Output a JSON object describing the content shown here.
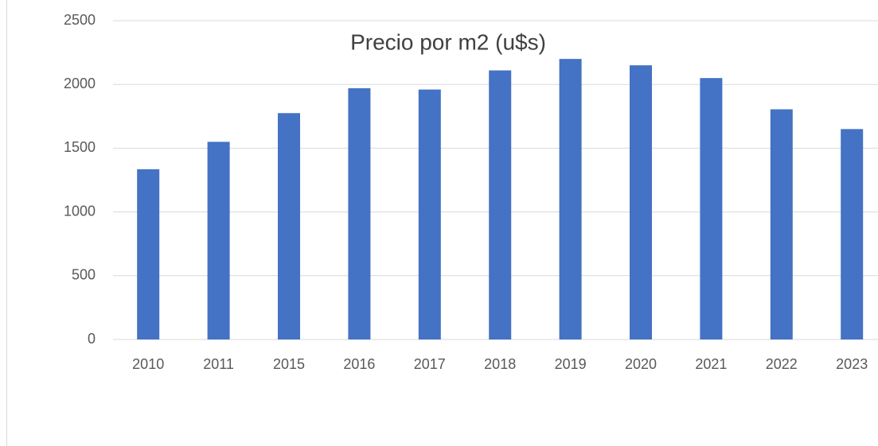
{
  "chart_data": {
    "type": "bar",
    "title": "Precio por m2 (u$s)",
    "categories": [
      "2010",
      "2011",
      "2015",
      "2016",
      "2017",
      "2018",
      "2019",
      "2020",
      "2021",
      "2022",
      "2023"
    ],
    "values": [
      1335,
      1550,
      1775,
      1970,
      1960,
      2110,
      2200,
      2150,
      2050,
      1805,
      1650
    ],
    "color": "#4472c4",
    "ylim": [
      0,
      2500
    ],
    "yticks": [
      0,
      500,
      1000,
      1500,
      2000,
      2500
    ],
    "grid": true
  }
}
